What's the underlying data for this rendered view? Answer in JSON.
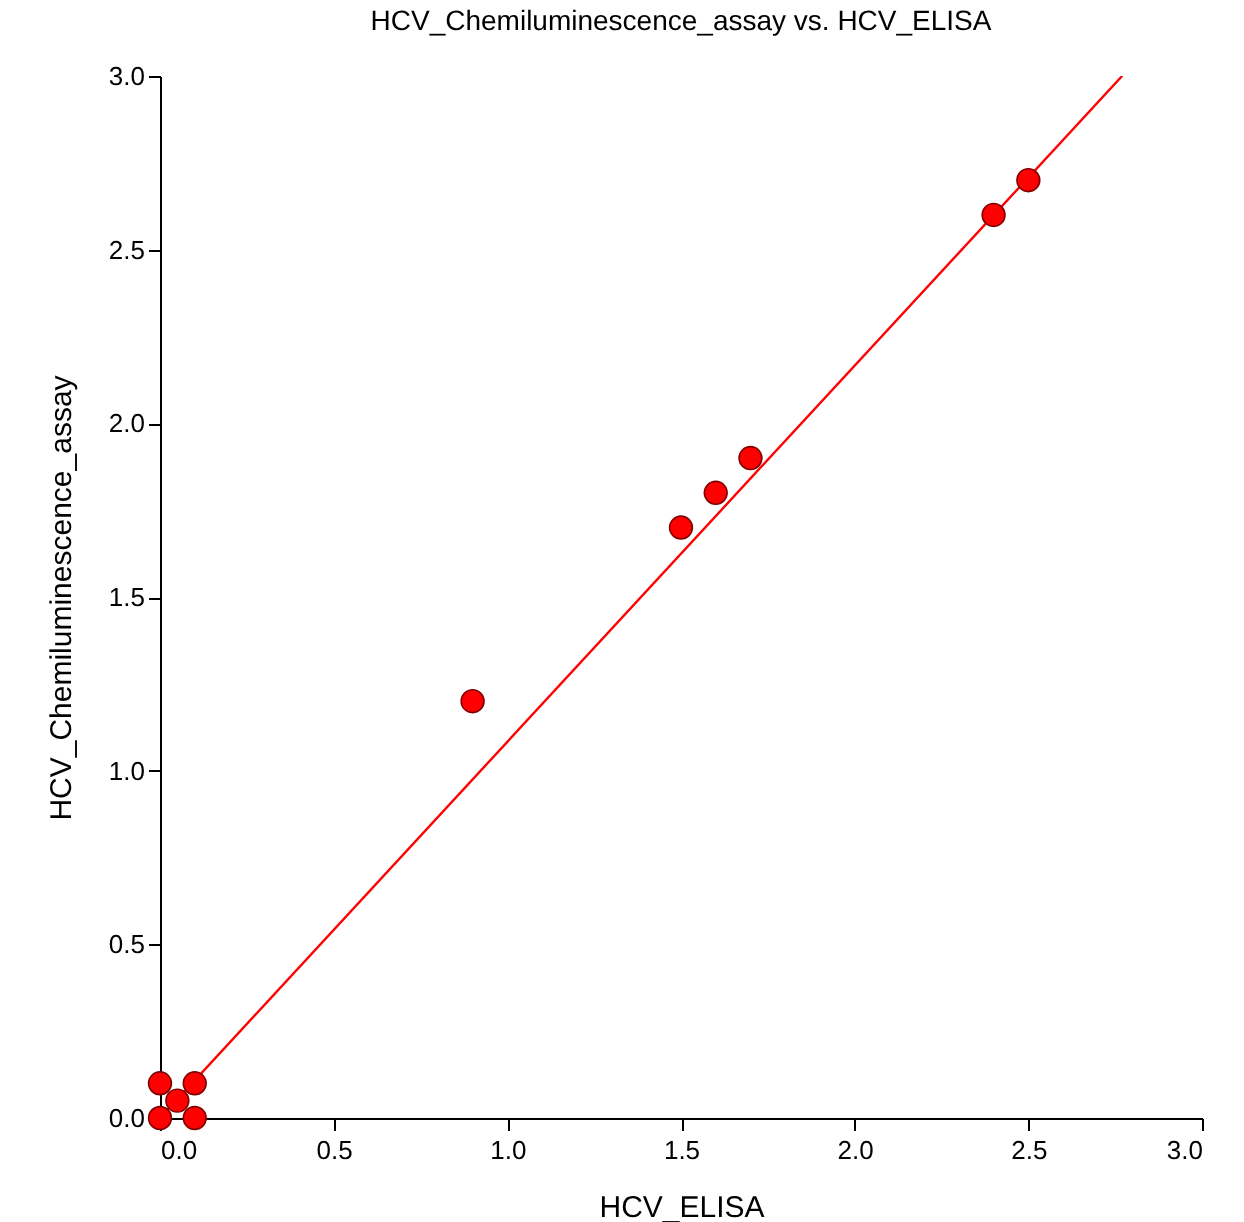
{
  "chart_data": {
    "type": "scatter",
    "title": "HCV_Chemiluminescence_assay vs. HCV_ELISA",
    "xlabel": "HCV_ELISA",
    "ylabel": "HCV_Chemiluminescence_assay",
    "xlim": [
      0,
      3
    ],
    "ylim": [
      0,
      3
    ],
    "xticks": [
      {
        "value": 0,
        "label": "0.0"
      },
      {
        "value": 0.5,
        "label": "0.5"
      },
      {
        "value": 1,
        "label": "1.0"
      },
      {
        "value": 1.5,
        "label": "1.5"
      },
      {
        "value": 2,
        "label": "2.0"
      },
      {
        "value": 2.5,
        "label": "2.5"
      },
      {
        "value": 3,
        "label": "3.0"
      }
    ],
    "yticks": [
      {
        "value": 0,
        "label": "0.0"
      },
      {
        "value": 0.5,
        "label": "0.5"
      },
      {
        "value": 1,
        "label": "1.0"
      },
      {
        "value": 1.5,
        "label": "1.5"
      },
      {
        "value": 2,
        "label": "2.0"
      },
      {
        "value": 2.5,
        "label": "2.5"
      },
      {
        "value": 3,
        "label": "3.0"
      }
    ],
    "grid": false,
    "marker": "circle",
    "series": [
      {
        "type": "line",
        "color": "#ff0000",
        "line_style": "solid",
        "marker": "none",
        "x": [
          0,
          2.77
        ],
        "values": [
          0,
          3.0
        ]
      },
      {
        "type": "scatter",
        "color": "#ff0000",
        "x": [
          0,
          0.1,
          0.05,
          0,
          0.1,
          0.9,
          1.5,
          1.6,
          1.7,
          2.4,
          2.5
        ],
        "values": [
          0,
          0,
          0.05,
          0.1,
          0.1,
          1.2,
          1.7,
          1.8,
          1.9,
          2.6,
          2.7
        ]
      }
    ]
  }
}
